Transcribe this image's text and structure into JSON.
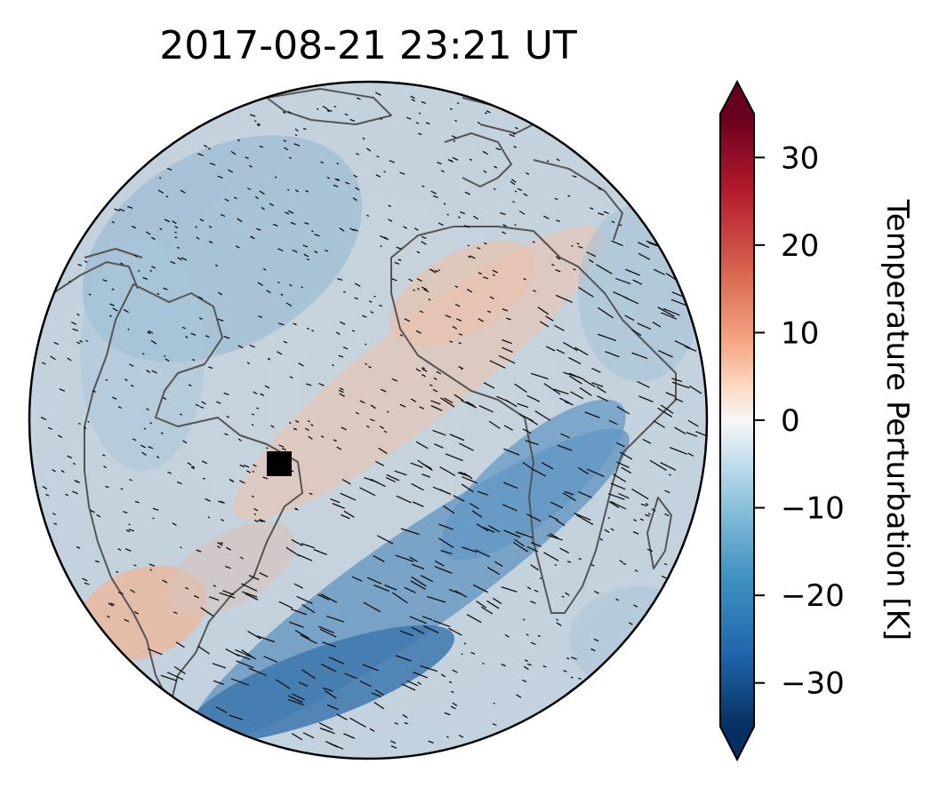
{
  "title": "2017-08-21  23:21 UT",
  "colorbar": {
    "label": "Temperature Perturbation [K]",
    "min": -35,
    "max": 35,
    "extend": "both",
    "colormap": "RdBu_r",
    "ticks": [
      {
        "value": 30,
        "label": "30"
      },
      {
        "value": 20,
        "label": "20"
      },
      {
        "value": 10,
        "label": "10"
      },
      {
        "value": 0,
        "label": "0"
      },
      {
        "value": -10,
        "label": "−10"
      },
      {
        "value": -20,
        "label": "−20"
      },
      {
        "value": -30,
        "label": "−30"
      }
    ],
    "colors": {
      "neg_end": "#053061",
      "neg_mid": "#4393c3",
      "neg_light": "#d1e5f0",
      "zero": "#f7f7f7",
      "pos_light": "#fddbc7",
      "pos_mid": "#d6604d",
      "pos_end": "#67001f"
    }
  },
  "map": {
    "projection": "orthographic",
    "marker": "black-square",
    "marker_color": "#000000",
    "coastline_color": "#555555"
  }
}
